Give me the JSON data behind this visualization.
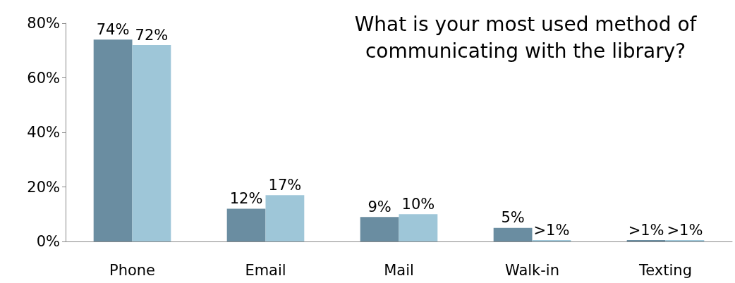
{
  "chart_data": {
    "type": "bar",
    "title": "What is your most used method of\ncommunicating with the library?",
    "categories": [
      "Phone",
      "Email",
      "Mail",
      "Walk-in",
      "Texting"
    ],
    "series": [
      {
        "color": "#6a8da1",
        "values": [
          74,
          12,
          9,
          5,
          0.5
        ],
        "value_labels": [
          "74%",
          "12%",
          "9%",
          "5%",
          ">1%"
        ]
      },
      {
        "color": "#9ec6d8",
        "values": [
          72,
          17,
          10,
          0.5,
          0.5
        ],
        "value_labels": [
          "72%",
          "17%",
          "10%",
          ">1%",
          ">1%"
        ]
      }
    ],
    "ylim": [
      0,
      80
    ],
    "yticks": [
      {
        "value": 0,
        "label": "0%"
      },
      {
        "value": 20,
        "label": "20%"
      },
      {
        "value": 40,
        "label": "40%"
      },
      {
        "value": 60,
        "label": "60%"
      },
      {
        "value": 80,
        "label": "80%"
      }
    ],
    "grid": false
  }
}
